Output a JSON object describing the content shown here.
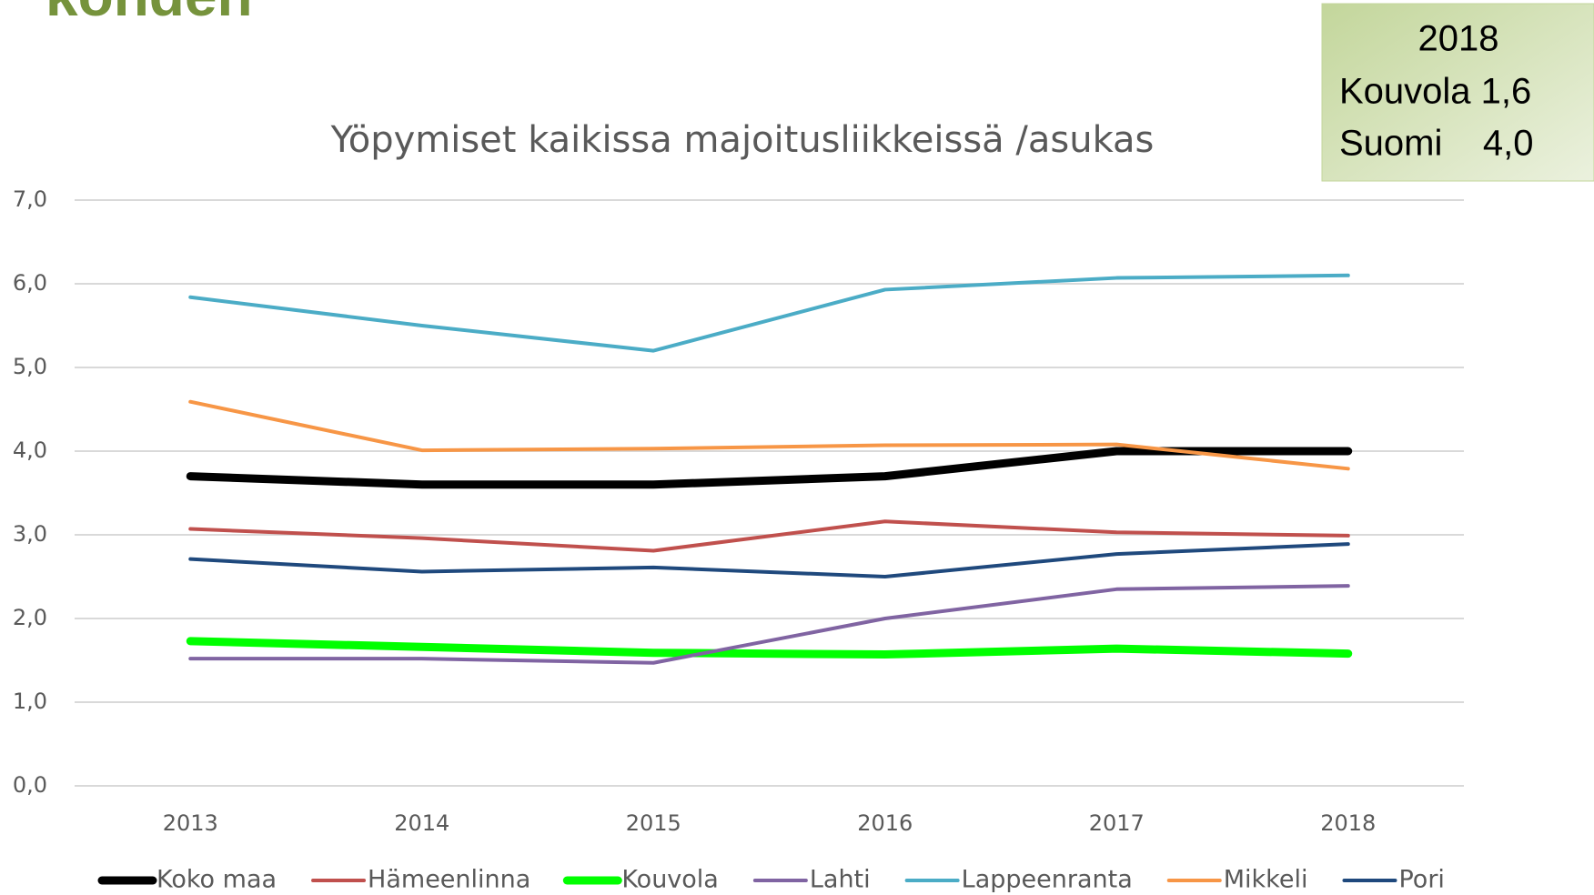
{
  "heading": "kohden",
  "info_box": {
    "lines": [
      "2018",
      "Kouvola 1,6",
      "Suomi    4,0"
    ]
  },
  "chart_data": {
    "type": "line",
    "title": "Yöpymiset kaikissa majoitusliikkeissä /asukas",
    "categories": [
      "2013",
      "2014",
      "2015",
      "2016",
      "2017",
      "2018"
    ],
    "ylim": [
      0,
      7
    ],
    "yticks": [
      {
        "value": 0,
        "label": "0,0"
      },
      {
        "value": 1,
        "label": "1,0"
      },
      {
        "value": 2,
        "label": "2,0"
      },
      {
        "value": 3,
        "label": "3,0"
      },
      {
        "value": 4,
        "label": "4,0"
      },
      {
        "value": 5,
        "label": "5,0"
      },
      {
        "value": 6,
        "label": "6,0"
      },
      {
        "value": 7,
        "label": "7,0"
      }
    ],
    "grid": true,
    "legend": "bottom",
    "series": [
      {
        "name": "Koko maa",
        "color": "#000000",
        "line_width": 9,
        "values": [
          3.7,
          3.6,
          3.6,
          3.7,
          4.0,
          4.0
        ]
      },
      {
        "name": "Hämeenlinna",
        "color": "#c0504d",
        "line_width": 4,
        "values": [
          3.07,
          2.96,
          2.81,
          3.16,
          3.03,
          2.99
        ]
      },
      {
        "name": "Kouvola",
        "color": "#00ff00",
        "line_width": 9,
        "values": [
          1.73,
          1.66,
          1.59,
          1.57,
          1.64,
          1.58
        ]
      },
      {
        "name": "Lahti",
        "color": "#8064a2",
        "line_width": 4,
        "values": [
          1.52,
          1.52,
          1.47,
          2.0,
          2.35,
          2.39
        ]
      },
      {
        "name": "Lappeenranta",
        "color": "#4bacc6",
        "line_width": 4,
        "values": [
          5.84,
          5.5,
          5.2,
          5.93,
          6.07,
          6.1
        ]
      },
      {
        "name": "Mikkeli",
        "color": "#f79646",
        "line_width": 4,
        "values": [
          4.59,
          4.01,
          4.03,
          4.07,
          4.08,
          3.79
        ]
      },
      {
        "name": "Pori",
        "color": "#1f497d",
        "line_width": 4,
        "values": [
          2.71,
          2.56,
          2.61,
          2.5,
          2.77,
          2.89
        ]
      }
    ]
  }
}
